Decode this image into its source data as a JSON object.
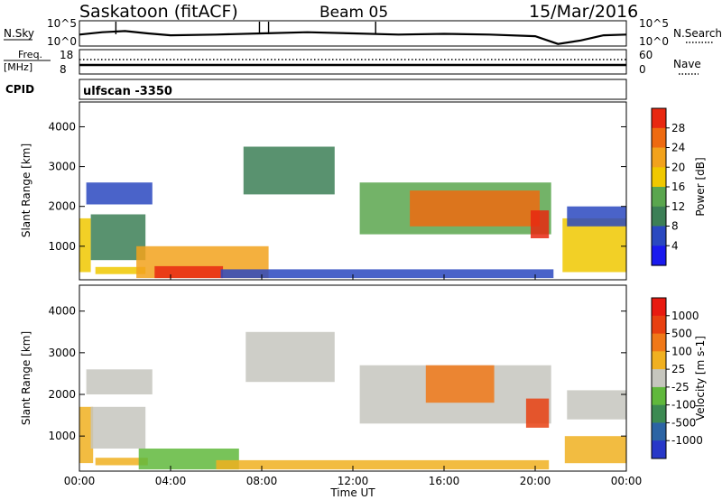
{
  "header": {
    "station": "Saskatoon (fitACF)",
    "beam": "Beam 05",
    "date": "15/Mar/2016"
  },
  "labels": {
    "nsky": "N.Sky",
    "nsearch": "N.Search",
    "freq": "Freq.",
    "freq_unit": "[MHz]",
    "nave": "Nave",
    "cpid": "CPID",
    "cpid_value": "ulfscan -3350"
  },
  "colors": {
    "power": [
      "#1a1aee",
      "#2a48c0",
      "#3c7f56",
      "#5aa64e",
      "#f0c800",
      "#f2a21c",
      "#ee6a10",
      "#e82810"
    ],
    "velocity": [
      "#2838c8",
      "#2c64a4",
      "#3c8a52",
      "#60b83c",
      "#c6c6be",
      "#f0b020",
      "#f07818",
      "#e84010",
      "#e81a10"
    ]
  },
  "chart_data": [
    {
      "type": "line",
      "panel": "noise",
      "series": [
        {
          "name": "N.Sky",
          "x": [
            "00:00",
            "01:00",
            "02:00",
            "03:00",
            "04:00",
            "06:00",
            "08:00",
            "10:00",
            "12:00",
            "14:00",
            "16:00",
            "18:00",
            "20:00",
            "21:00",
            "22:00",
            "23:00",
            "24:00"
          ],
          "y": [
            0.45,
            0.55,
            0.6,
            0.5,
            0.42,
            0.45,
            0.5,
            0.55,
            0.5,
            0.45,
            0.48,
            0.45,
            0.38,
            0.05,
            0.2,
            0.42,
            0.45
          ]
        }
      ],
      "ylabel_left": [
        "10^5",
        "10^0"
      ],
      "ylabel_right": [
        "10^5",
        "10^0"
      ]
    },
    {
      "type": "line",
      "panel": "freq-nave",
      "series": [
        {
          "name": "Freq.",
          "x": [
            "00:00",
            "24:00"
          ],
          "y": [
            11.5,
            11.5
          ]
        },
        {
          "name": "Nave",
          "x": [
            "00:00",
            "24:00"
          ],
          "y": [
            15,
            15
          ]
        }
      ],
      "yticks_left": [
        "18",
        "8"
      ],
      "yticks_right": [
        "60",
        "0"
      ]
    },
    {
      "type": "heatmap",
      "panel": "power",
      "title": "",
      "xlabel": "",
      "ylabel": "Slant Range [km]",
      "xlim": [
        0,
        24
      ],
      "ylim": [
        180,
        4600
      ],
      "xticks": [
        "00:00",
        "04:00",
        "08:00",
        "12:00",
        "16:00",
        "20:00",
        "00:00"
      ],
      "yticks": [
        1000,
        2000,
        3000,
        4000
      ],
      "colorbar_label": "Power [dB]",
      "colorbar_ticks": [
        "28",
        "24",
        "20",
        "16",
        "12",
        "8",
        "4"
      ],
      "regions": [
        {
          "t0": 0.0,
          "t1": 0.5,
          "r0": 350,
          "r1": 1700,
          "level": 4
        },
        {
          "t0": 0.5,
          "t1": 2.9,
          "r0": 650,
          "r1": 1800,
          "level": 2
        },
        {
          "t0": 0.3,
          "t1": 3.2,
          "r0": 2050,
          "r1": 2600,
          "level": 1
        },
        {
          "t0": 0.7,
          "t1": 2.9,
          "r0": 300,
          "r1": 480,
          "level": 4
        },
        {
          "t0": 2.5,
          "t1": 8.3,
          "r0": 200,
          "r1": 1000,
          "level": 5
        },
        {
          "t0": 3.3,
          "t1": 6.3,
          "r0": 200,
          "r1": 500,
          "level": 7
        },
        {
          "t0": 6.2,
          "t1": 20.8,
          "r0": 200,
          "r1": 420,
          "level": 1
        },
        {
          "t0": 7.2,
          "t1": 11.2,
          "r0": 2300,
          "r1": 3500,
          "level": 2
        },
        {
          "t0": 12.3,
          "t1": 20.7,
          "r0": 1300,
          "r1": 2600,
          "level": 3
        },
        {
          "t0": 14.5,
          "t1": 20.2,
          "r0": 1500,
          "r1": 2400,
          "level": 6
        },
        {
          "t0": 19.8,
          "t1": 20.6,
          "r0": 1200,
          "r1": 1900,
          "level": 7
        },
        {
          "t0": 21.2,
          "t1": 24.0,
          "r0": 350,
          "r1": 1700,
          "level": 4
        },
        {
          "t0": 21.4,
          "t1": 24.0,
          "r0": 1500,
          "r1": 2000,
          "level": 1
        }
      ]
    },
    {
      "type": "heatmap",
      "panel": "velocity",
      "title": "",
      "xlabel": "Time UT",
      "ylabel": "Slant Range [km]",
      "xlim": [
        0,
        24
      ],
      "ylim": [
        180,
        4600
      ],
      "xticks": [
        "00:00",
        "04:00",
        "08:00",
        "12:00",
        "16:00",
        "20:00",
        "00:00"
      ],
      "yticks": [
        1000,
        2000,
        3000,
        4000
      ],
      "colorbar_label": "Velocity [m s-1]",
      "colorbar_ticks": [
        "1000",
        "500",
        "100",
        "25",
        "-25",
        "-100",
        "-500",
        "-1000"
      ],
      "regions": [
        {
          "t0": 0.0,
          "t1": 0.6,
          "r0": 350,
          "r1": 1700,
          "level": 5
        },
        {
          "t0": 0.5,
          "t1": 2.9,
          "r0": 700,
          "r1": 1700,
          "level": 4
        },
        {
          "t0": 0.3,
          "t1": 3.2,
          "r0": 2000,
          "r1": 2600,
          "level": 4
        },
        {
          "t0": 0.7,
          "t1": 3.0,
          "r0": 300,
          "r1": 480,
          "level": 5
        },
        {
          "t0": 2.6,
          "t1": 7.0,
          "r0": 200,
          "r1": 700,
          "level": 3
        },
        {
          "t0": 6.0,
          "t1": 20.6,
          "r0": 200,
          "r1": 420,
          "level": 5
        },
        {
          "t0": 7.3,
          "t1": 11.2,
          "r0": 2300,
          "r1": 3500,
          "level": 4
        },
        {
          "t0": 12.3,
          "t1": 20.7,
          "r0": 1300,
          "r1": 2700,
          "level": 4
        },
        {
          "t0": 15.2,
          "t1": 18.2,
          "r0": 1800,
          "r1": 2700,
          "level": 6
        },
        {
          "t0": 19.6,
          "t1": 20.6,
          "r0": 1200,
          "r1": 1900,
          "level": 7
        },
        {
          "t0": 21.3,
          "t1": 24.0,
          "r0": 350,
          "r1": 1000,
          "level": 5
        },
        {
          "t0": 21.4,
          "t1": 24.0,
          "r0": 1400,
          "r1": 2100,
          "level": 4
        }
      ]
    }
  ]
}
